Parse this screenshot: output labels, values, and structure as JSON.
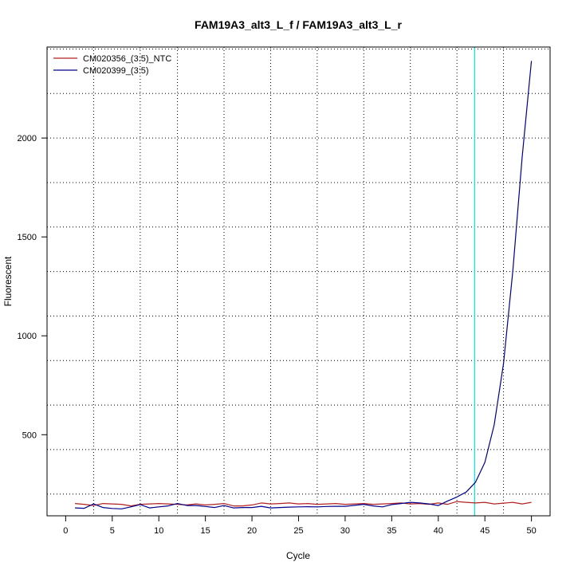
{
  "chart_data": {
    "type": "line",
    "title": "FAM19A3_alt3_L_f / FAM19A3_alt3_L_r",
    "xlabel": "Cycle",
    "ylabel": "Fluorescent",
    "xlim": [
      -2,
      52
    ],
    "ylim": [
      90,
      2460
    ],
    "x_ticks": [
      0,
      5,
      10,
      15,
      20,
      25,
      30,
      35,
      40,
      45,
      50
    ],
    "y_ticks": [
      500,
      1000,
      1500,
      2000
    ],
    "x_grid": [
      3,
      8,
      12,
      17,
      22,
      27,
      32,
      37,
      42,
      47
    ],
    "y_grid": [
      200,
      425,
      650,
      875,
      1100,
      1325,
      1550,
      1775,
      2000,
      2225,
      2450
    ],
    "grid": true,
    "legend_position": "top-left",
    "threshold_line": {
      "x": 43.9,
      "color": "#00e5e5"
    },
    "x": [
      1,
      2,
      3,
      4,
      5,
      6,
      7,
      8,
      9,
      10,
      11,
      12,
      13,
      14,
      15,
      16,
      17,
      18,
      19,
      20,
      21,
      22,
      23,
      24,
      25,
      26,
      27,
      28,
      29,
      30,
      31,
      32,
      33,
      34,
      35,
      36,
      37,
      38,
      39,
      40,
      41,
      42,
      43,
      44,
      45,
      46,
      47,
      48,
      49,
      50
    ],
    "series": [
      {
        "name": "CM020356_(3:5)_NTC",
        "color": "#b22222",
        "values": [
          152,
          148,
          142,
          152,
          150,
          148,
          140,
          148,
          150,
          152,
          150,
          148,
          145,
          150,
          145,
          148,
          152,
          140,
          140,
          145,
          155,
          150,
          152,
          155,
          150,
          152,
          148,
          150,
          152,
          148,
          150,
          152,
          148,
          150,
          152,
          155,
          150,
          152,
          148,
          155,
          148,
          162,
          158,
          155,
          158,
          150,
          154,
          158,
          150,
          158
        ]
      },
      {
        "name": "CM020399_(3:5)",
        "color": "#00008b",
        "values": [
          130,
          128,
          150,
          132,
          127,
          125,
          135,
          147,
          130,
          135,
          140,
          152,
          142,
          142,
          137,
          132,
          142,
          130,
          132,
          132,
          138,
          130,
          132,
          134,
          135,
          136,
          135,
          137,
          138,
          138,
          143,
          148,
          140,
          135,
          147,
          152,
          158,
          155,
          150,
          142,
          165,
          185,
          210,
          260,
          360,
          550,
          860,
          1330,
          1900,
          2390
        ]
      }
    ]
  }
}
